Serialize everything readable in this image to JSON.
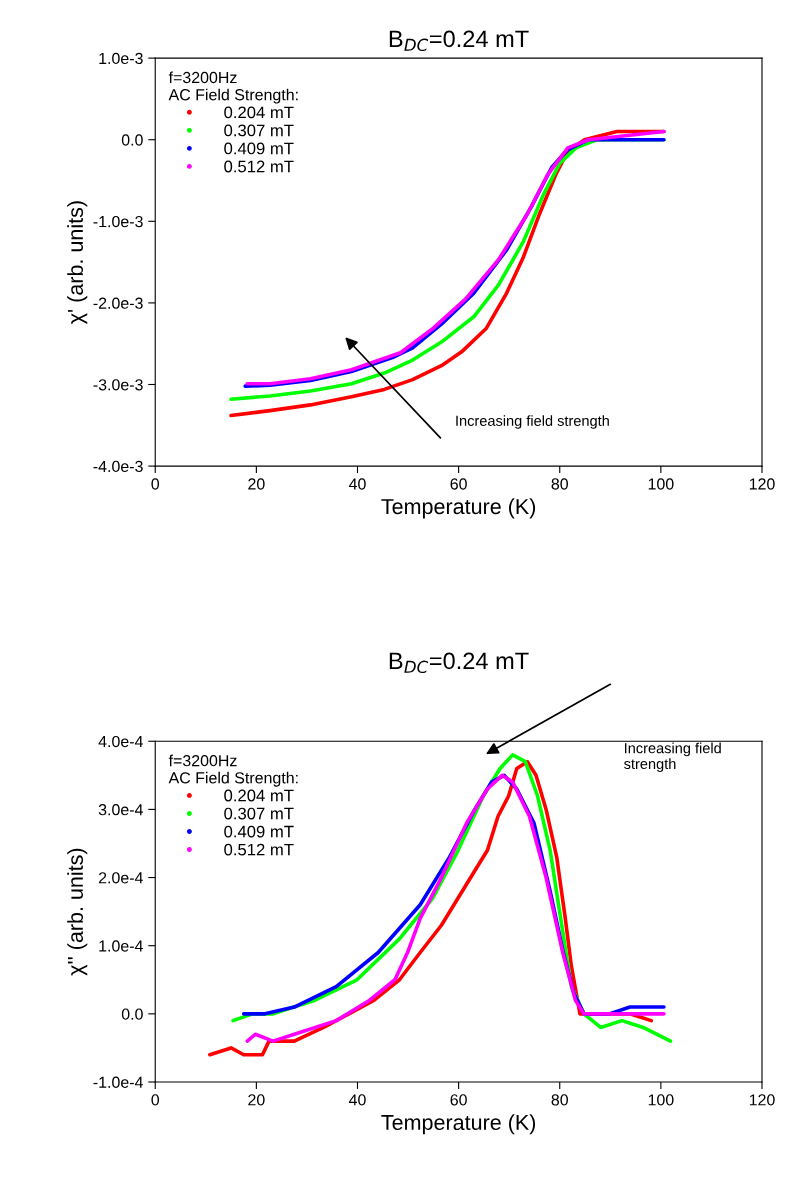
{
  "chart_data": [
    {
      "type": "line",
      "title": "B$_{DC}$=0.24 mT",
      "xlabel": "Temperature (K)",
      "ylabel": "χ' (arb. units)",
      "legend_title": "f=3200Hz\nAC Field Strength:",
      "legend": "top left",
      "grid": false,
      "line_style": "solid",
      "xlim": [
        0,
        120
      ],
      "xticks": [
        0,
        20,
        40,
        60,
        80,
        100,
        120
      ],
      "ylim": [
        -0.004,
        0.001
      ],
      "yticks": [
        {
          "value": -0.004,
          "label": "-4.0e-3"
        },
        {
          "value": -0.003,
          "label": "-3.0e-3"
        },
        {
          "value": -0.002,
          "label": "-2.0e-3"
        },
        {
          "value": -0.001,
          "label": "-1.0e-3"
        },
        {
          "value": 0,
          "label": "0.0"
        },
        {
          "value": 0.001,
          "label": "1.0e-3"
        }
      ],
      "annotations": [
        "Increasing field strength"
      ],
      "series": [
        {
          "name": "0.204 mT",
          "color": "#ff0000",
          "x": [
            15.0,
            22.7,
            30.7,
            38.8,
            45.3,
            50.9,
            56.6,
            60.6,
            65.5,
            69.5,
            72.8,
            76.0,
            79.2,
            81.6,
            84.9,
            91.3,
            100.6
          ],
          "values": [
            -0.00338,
            -0.00332,
            -0.00325,
            -0.00315,
            -0.00306,
            -0.00294,
            -0.00277,
            -0.0026,
            -0.00231,
            -0.00188,
            -0.00144,
            -0.00091,
            -0.00043,
            -0.00014,
            0.0,
            0.0001,
            0.0001
          ]
        },
        {
          "name": "0.307 mT",
          "color": "#00ff00",
          "x": [
            15.0,
            22.7,
            30.7,
            38.8,
            45.3,
            50.9,
            56.6,
            63.0,
            67.9,
            72.8,
            76.8,
            80.0,
            83.2,
            87.3,
            100.6
          ],
          "values": [
            -0.00318,
            -0.00314,
            -0.00308,
            -0.00299,
            -0.00286,
            -0.0027,
            -0.00248,
            -0.00217,
            -0.00178,
            -0.00125,
            -0.00067,
            -0.00029,
            -0.0001,
            0.0,
            0.0
          ]
        },
        {
          "name": "0.409 mT",
          "color": "#0000ff",
          "x": [
            17.8,
            22.7,
            30.7,
            38.8,
            46.9,
            50.9,
            56.6,
            63.0,
            69.5,
            74.4,
            78.4,
            81.6,
            85.7,
            100.6
          ],
          "values": [
            -0.00302,
            -0.00301,
            -0.00295,
            -0.00284,
            -0.00267,
            -0.00255,
            -0.00226,
            -0.00188,
            -0.00135,
            -0.00082,
            -0.00034,
            -0.00012,
            0.0,
            0.0
          ]
        },
        {
          "name": "0.512 mT",
          "color": "#ff00ff",
          "x": [
            18.2,
            22.7,
            30.7,
            38.8,
            48.5,
            55.0,
            61.4,
            67.9,
            73.6,
            77.6,
            81.6,
            85.7,
            100.6
          ],
          "values": [
            -0.00299,
            -0.00299,
            -0.00293,
            -0.00282,
            -0.00261,
            -0.00231,
            -0.00195,
            -0.00147,
            -0.00091,
            -0.00043,
            -0.0001,
            0.0,
            0.0001
          ]
        }
      ]
    },
    {
      "type": "line",
      "title": "B$_{DC}$=0.24 mT",
      "xlabel": "Temperature (K)",
      "ylabel": "χ'' (arb. units)",
      "legend_title": "f=3200Hz\nAC Field Strength:",
      "legend": "top left",
      "grid": false,
      "line_style": "solid",
      "xlim": [
        0,
        120
      ],
      "xticks": [
        0,
        20,
        40,
        60,
        80,
        100,
        120
      ],
      "ylim": [
        -0.0001,
        0.0004
      ],
      "yticks": [
        {
          "value": -0.0001,
          "label": "-1.0e-4"
        },
        {
          "value": 0,
          "label": "0.0"
        },
        {
          "value": 0.0001,
          "label": "1.0e-4"
        },
        {
          "value": 0.0002,
          "label": "2.0e-4"
        },
        {
          "value": 0.0003,
          "label": "3.0e-4"
        },
        {
          "value": 0.0004,
          "label": "4.0e-4"
        }
      ],
      "annotations": [
        "Increasing field\nstrength"
      ],
      "series": [
        {
          "name": "0.204 mT",
          "color": "#ff0000",
          "x": [
            10.8,
            15.0,
            17.5,
            21.2,
            22.5,
            27.5,
            33.3,
            38.3,
            43.3,
            48.3,
            52.4,
            56.6,
            59.9,
            63.2,
            65.7,
            67.8,
            69.9,
            71.5,
            73.6,
            75.3,
            77.3,
            79.4,
            81.1,
            82.3,
            84.0,
            85.6,
            89.8,
            93.9,
            98.1
          ],
          "values": [
            -6e-05,
            -5e-05,
            -6e-05,
            -6e-05,
            -4e-05,
            -4e-05,
            -2e-05,
            0.0,
            2e-05,
            5e-05,
            9e-05,
            0.00013,
            0.00017,
            0.00021,
            0.00024,
            0.00029,
            0.00032,
            0.00036,
            0.00037,
            0.00035,
            0.0003,
            0.00023,
            0.00014,
            7e-05,
            0.0,
            0.0,
            0.0,
            0.0,
            -1e-05
          ]
        },
        {
          "name": "0.307 mT",
          "color": "#00ff00",
          "x": [
            15.4,
            19.2,
            23.3,
            31.6,
            39.9,
            48.3,
            54.9,
            59.9,
            64.9,
            68.2,
            70.7,
            73.2,
            75.6,
            78.1,
            80.6,
            82.3,
            84.8,
            88.1,
            92.3,
            96.5,
            101.9
          ],
          "values": [
            -1e-05,
            0.0,
            0.0,
            2e-05,
            5e-05,
            0.00011,
            0.00017,
            0.00024,
            0.00032,
            0.00036,
            0.00038,
            0.00037,
            0.00032,
            0.00024,
            0.00012,
            4e-05,
            0.0,
            -2e-05,
            -1e-05,
            -2e-05,
            -4e-05
          ]
        },
        {
          "name": "0.409 mT",
          "color": "#0000ff",
          "x": [
            17.5,
            21.7,
            27.5,
            35.8,
            44.1,
            52.4,
            58.2,
            63.2,
            66.5,
            69.0,
            71.5,
            74.9,
            78.1,
            80.7,
            82.8,
            84.8,
            89.8,
            93.9,
            100.6
          ],
          "values": [
            0.0,
            0.0,
            1e-05,
            4e-05,
            9e-05,
            0.00016,
            0.00023,
            0.0003,
            0.00034,
            0.00035,
            0.00033,
            0.00028,
            0.00018,
            9e-05,
            3e-05,
            0.0,
            0.0,
            1e-05,
            1e-05
          ]
        },
        {
          "name": "0.512 mT",
          "color": "#ff00ff",
          "x": [
            18.2,
            19.8,
            23.3,
            27.5,
            35.8,
            42.4,
            47.4,
            49.9,
            52.4,
            56.6,
            61.6,
            65.7,
            68.6,
            70.7,
            74.0,
            77.3,
            80.6,
            83.1,
            84.8,
            89.8,
            95.6,
            100.6
          ],
          "values": [
            -4e-05,
            -3e-05,
            -4e-05,
            -3e-05,
            -1e-05,
            2e-05,
            5e-05,
            9e-05,
            0.00014,
            0.0002,
            0.00028,
            0.00033,
            0.00035,
            0.00034,
            0.00029,
            0.0002,
            9e-05,
            2e-05,
            0.0,
            0.0,
            0.0,
            0.0
          ]
        }
      ]
    }
  ]
}
